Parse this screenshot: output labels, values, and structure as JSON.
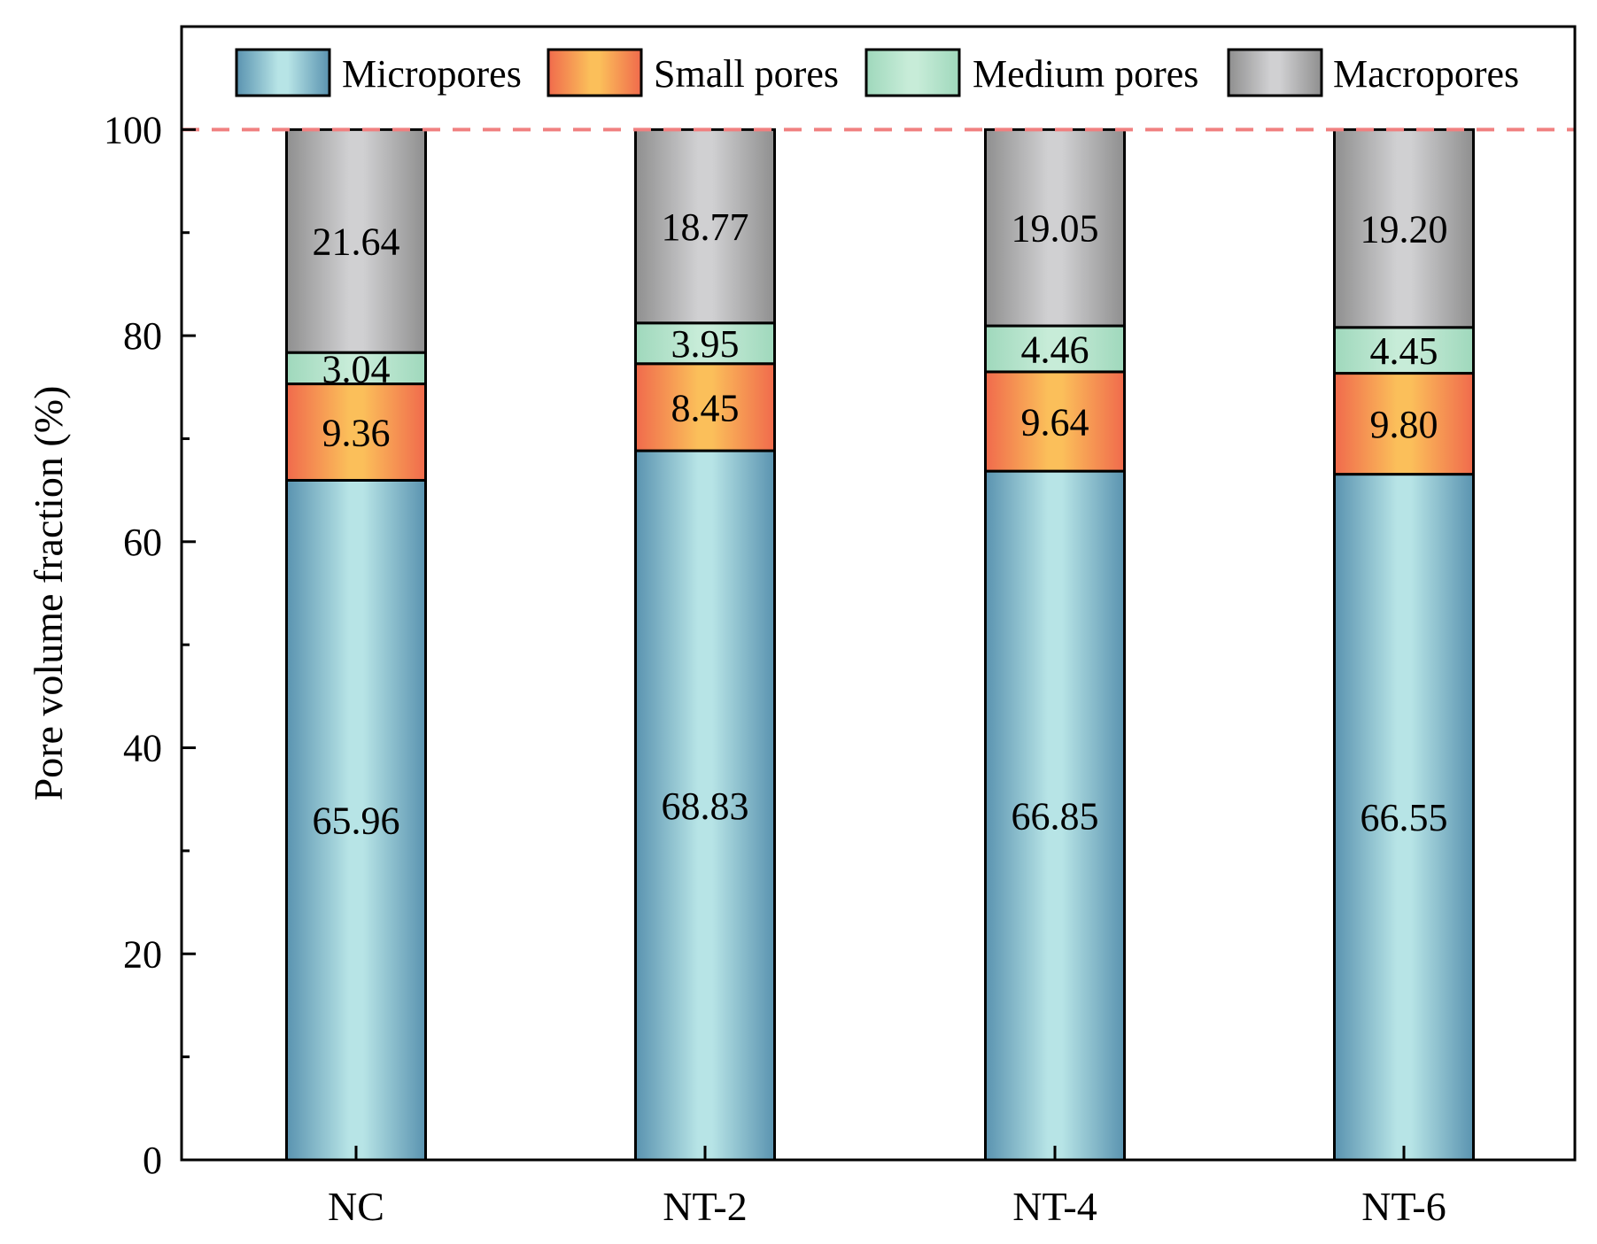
{
  "chart_data": {
    "type": "bar",
    "stacked": true,
    "categories": [
      "NC",
      "NT-2",
      "NT-4",
      "NT-6"
    ],
    "series": [
      {
        "name": "Micropores",
        "values": [
          65.96,
          68.83,
          66.85,
          66.55
        ],
        "color_edge": "#5a93b0",
        "color_center": "#b7e4e6"
      },
      {
        "name": "Small pores",
        "values": [
          9.36,
          8.45,
          9.64,
          9.8
        ],
        "color_edge": "#f06a4c",
        "color_center": "#fbbf5a"
      },
      {
        "name": "Medium pores",
        "values": [
          3.04,
          3.95,
          4.46,
          4.45
        ],
        "color_edge": "#9fd8bc",
        "color_center": "#c7ecd8"
      },
      {
        "name": "Macropores",
        "values": [
          21.64,
          18.77,
          19.05,
          19.2
        ],
        "color_edge": "#8f8f8f",
        "color_center": "#d0d0d2"
      }
    ],
    "data_labels": [
      [
        "65.96",
        "68.83",
        "66.85",
        "66.55"
      ],
      [
        "9.36",
        "8.45",
        "9.64",
        "9.80"
      ],
      [
        "3.04",
        "3.95",
        "4.46",
        "4.45"
      ],
      [
        "21.64",
        "18.77",
        "19.05",
        "19.20"
      ]
    ],
    "title": "",
    "xlabel": "",
    "ylabel": "Pore volume fraction (%)",
    "ylim": [
      0,
      110
    ],
    "yticks": [
      0,
      20,
      40,
      60,
      80,
      100
    ],
    "ytick_labels": [
      "0",
      "20",
      "40",
      "60",
      "80",
      "100"
    ],
    "y_minor_step": 10,
    "reference_line": {
      "value": 100,
      "style": "dashed",
      "color": "#f08080"
    },
    "legend_position": "top",
    "grid": false
  }
}
